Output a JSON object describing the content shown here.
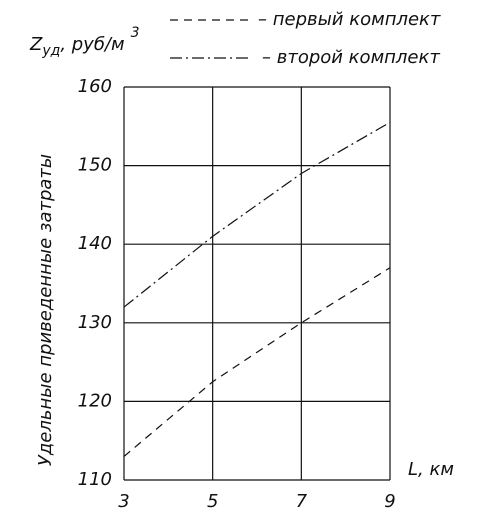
{
  "chart_data": {
    "type": "line",
    "y_label": {
      "symbol": "Z",
      "subscript": "уд",
      "unit": ", руб/м",
      "superscript": "3"
    },
    "y_title": "Удельные приведенные затраты",
    "x_label": "L, км",
    "x": [
      3,
      5,
      7,
      9
    ],
    "series": [
      {
        "name": "– первый комплект",
        "color": "#111111",
        "dash": "8,6",
        "values": [
          113,
          122.5,
          130,
          137
        ]
      },
      {
        "name": "– второй комплект",
        "color": "#111111",
        "dash": "12,4,2,4",
        "values": [
          132,
          141,
          149,
          155.5
        ]
      }
    ],
    "xlim": [
      3,
      9
    ],
    "xticks": [
      3,
      5,
      7,
      9
    ],
    "ylim": [
      110,
      160
    ],
    "yticks": [
      110,
      120,
      130,
      140,
      150,
      160
    ],
    "grid": true
  }
}
